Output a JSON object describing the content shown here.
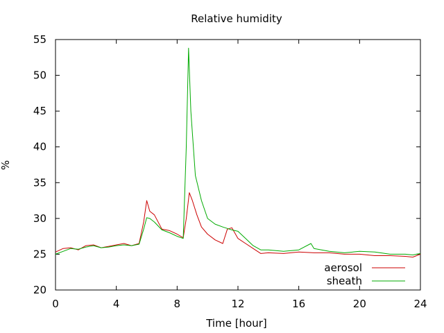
{
  "chart_data": {
    "type": "line",
    "title": "Relative humidity",
    "xlabel": "Time [hour]",
    "ylabel": "%",
    "xlim": [
      0,
      24
    ],
    "ylim": [
      20,
      55
    ],
    "xticks": [
      0,
      4,
      8,
      12,
      16,
      20,
      24
    ],
    "yticks": [
      20,
      25,
      30,
      35,
      40,
      45,
      50,
      55
    ],
    "grid": false,
    "legend_position": "bottom-right",
    "series": [
      {
        "name": "aerosol",
        "color": "#cc0000",
        "x": [
          0,
          0.5,
          1,
          1.5,
          2,
          2.5,
          3,
          3.5,
          4,
          4.5,
          5,
          5.5,
          5.8,
          6,
          6.2,
          6.5,
          7,
          7.5,
          8,
          8.4,
          8.6,
          8.8,
          9,
          9.3,
          9.6,
          10,
          10.5,
          11,
          11.3,
          11.6,
          12,
          12.5,
          13,
          13.5,
          14,
          15,
          16,
          17,
          18,
          19,
          20,
          21,
          22,
          23,
          23.5,
          24
        ],
        "y": [
          25.3,
          25.8,
          25.9,
          25.6,
          26.2,
          26.3,
          25.9,
          26.1,
          26.3,
          26.5,
          26.2,
          26.5,
          29.5,
          32.5,
          31.0,
          30.5,
          28.5,
          28.3,
          27.8,
          27.3,
          30.0,
          33.6,
          32.5,
          30.5,
          28.8,
          27.8,
          27.0,
          26.5,
          28.5,
          28.7,
          27.2,
          26.5,
          25.8,
          25.1,
          25.2,
          25.1,
          25.3,
          25.2,
          25.2,
          25.0,
          25.0,
          24.8,
          24.8,
          24.7,
          24.6,
          25.0
        ]
      },
      {
        "name": "sheath",
        "color": "#00aa00",
        "x": [
          0,
          0.5,
          1,
          1.5,
          2,
          2.5,
          3,
          3.5,
          4,
          4.5,
          5,
          5.5,
          5.8,
          6,
          6.2,
          6.5,
          7,
          7.5,
          8,
          8.4,
          8.6,
          8.75,
          8.9,
          9.2,
          9.6,
          10,
          10.5,
          11,
          11.3,
          11.6,
          12,
          12.5,
          13,
          13.5,
          14,
          15,
          16,
          16.8,
          17,
          18,
          19,
          20,
          21,
          22,
          23,
          23.5,
          24
        ],
        "y": [
          25.0,
          25.4,
          25.8,
          25.7,
          26.0,
          26.2,
          25.9,
          26.0,
          26.2,
          26.3,
          26.2,
          26.4,
          28.5,
          30.1,
          30.0,
          29.5,
          28.4,
          28.0,
          27.5,
          27.2,
          40.0,
          53.8,
          45.0,
          36.0,
          32.5,
          30.0,
          29.2,
          28.8,
          28.6,
          28.4,
          28.2,
          27.2,
          26.2,
          25.6,
          25.6,
          25.4,
          25.6,
          26.5,
          25.8,
          25.4,
          25.2,
          25.4,
          25.3,
          25.0,
          25.0,
          24.9,
          25.1
        ]
      }
    ]
  }
}
